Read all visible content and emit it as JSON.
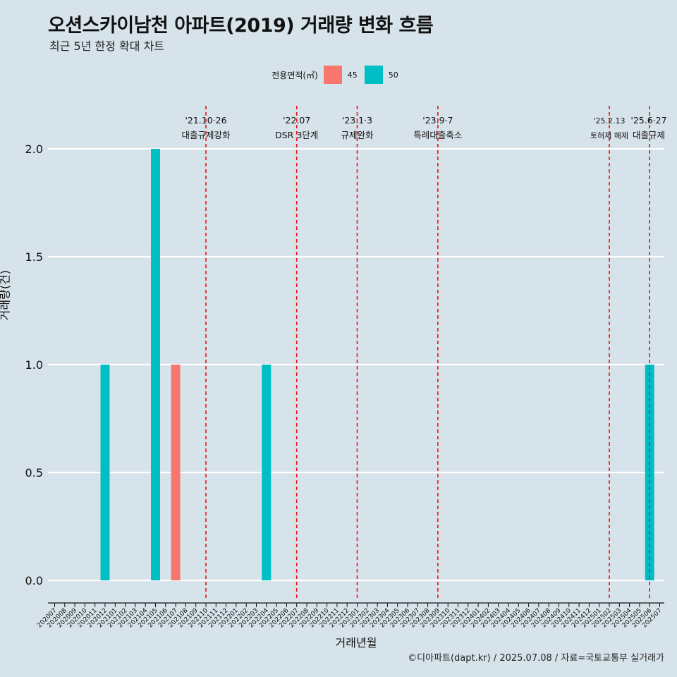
{
  "title": "오션스카이남천 아파트(2019) 거래량 변화 흐름",
  "subtitle": "최근 5년 한정 확대 차트",
  "legend": {
    "title": "전용면적(㎡)",
    "items": [
      {
        "label": "45",
        "color": "#F8766D"
      },
      {
        "label": "50",
        "color": "#00BFC4"
      }
    ]
  },
  "caption": "©디아파트(dapt.kr) / 2025.07.08 / 자료=국토교통부 실거래가",
  "chart_data": {
    "type": "bar",
    "xlabel": "거래년월",
    "ylabel": "거래량(건)",
    "ylim": [
      0,
      2
    ],
    "yticks": [
      "0.0",
      "0.5",
      "1.0",
      "1.5",
      "2.0"
    ],
    "grid": true,
    "legend_position": "top",
    "categories": [
      "202007",
      "202008",
      "202009",
      "202010",
      "202011",
      "202012",
      "202101",
      "202102",
      "202103",
      "202104",
      "202105",
      "202106",
      "202107",
      "202108",
      "202109",
      "202110",
      "202111",
      "202112",
      "202201",
      "202202",
      "202203",
      "202204",
      "202205",
      "202206",
      "202207",
      "202208",
      "202209",
      "202210",
      "202211",
      "202212",
      "202301",
      "202302",
      "202303",
      "202304",
      "202305",
      "202306",
      "202307",
      "202308",
      "202309",
      "202310",
      "202311",
      "202312",
      "202401",
      "202402",
      "202403",
      "202404",
      "202405",
      "202406",
      "202407",
      "202408",
      "202409",
      "202410",
      "202411",
      "202412",
      "202501",
      "202502",
      "202503",
      "202504",
      "202505",
      "202506",
      "202507"
    ],
    "series": [
      {
        "name": "45",
        "color": "#F8766D",
        "values": [
          0,
          0,
          0,
          0,
          0,
          0,
          0,
          0,
          0,
          0,
          0,
          0,
          1,
          0,
          0,
          0,
          0,
          0,
          0,
          0,
          0,
          0,
          0,
          0,
          0,
          0,
          0,
          0,
          0,
          0,
          0,
          0,
          0,
          0,
          0,
          0,
          0,
          0,
          0,
          0,
          0,
          0,
          0,
          0,
          0,
          0,
          0,
          0,
          0,
          0,
          0,
          0,
          0,
          0,
          0,
          0,
          0,
          0,
          0,
          0,
          0
        ]
      },
      {
        "name": "50",
        "color": "#00BFC4",
        "values": [
          0,
          0,
          0,
          0,
          0,
          1,
          0,
          0,
          0,
          0,
          2,
          0,
          0,
          0,
          0,
          0,
          0,
          0,
          0,
          0,
          0,
          1,
          0,
          0,
          0,
          0,
          0,
          0,
          0,
          0,
          0,
          0,
          0,
          0,
          0,
          0,
          0,
          0,
          0,
          0,
          0,
          0,
          0,
          0,
          0,
          0,
          0,
          0,
          0,
          0,
          0,
          0,
          0,
          0,
          0,
          0,
          0,
          0,
          0,
          1,
          0
        ]
      }
    ],
    "events": [
      {
        "date": "'21.10·26",
        "label": "대출규제강화",
        "x": "202110"
      },
      {
        "date": "'22.07",
        "label": "DSR 3단계",
        "x": "202207"
      },
      {
        "date": "'23.1·3",
        "label": "규제완화",
        "x": "202301"
      },
      {
        "date": "'23.9·7",
        "label": "특례대출축소",
        "x": "202309"
      },
      {
        "date": "'25.2.13",
        "label": "토허제 해제",
        "x": "202502"
      },
      {
        "date": "'25.6·27",
        "label": "대출규제",
        "x": "202506"
      }
    ]
  }
}
